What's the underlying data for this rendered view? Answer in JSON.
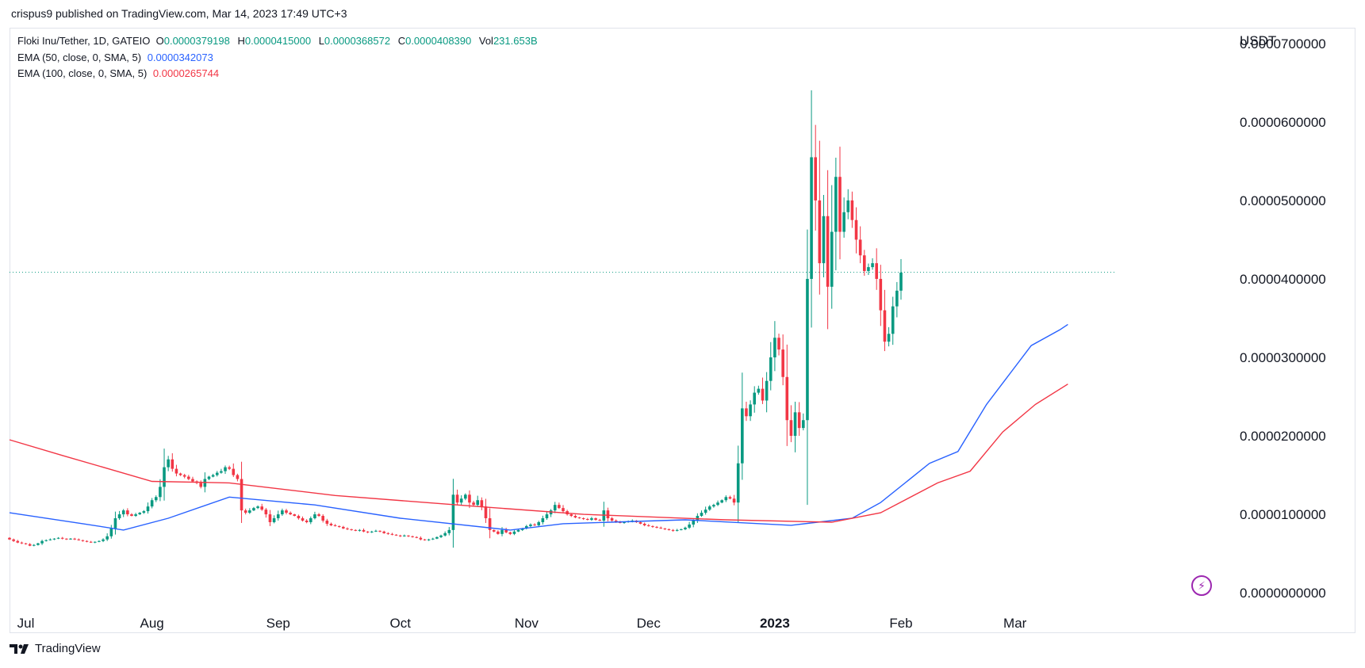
{
  "publisher": "crispus9 published on TradingView.com, Mar 14, 2023 17:49 UTC+3",
  "legend": {
    "symbol": "Floki Inu/Tether, 1D, GATEIO",
    "o_label": "O",
    "o_value": "0.0000379198",
    "h_label": "H",
    "h_value": "0.0000415000",
    "l_label": "L",
    "l_value": "0.0000368572",
    "c_label": "C",
    "c_value": "0.0000408390",
    "vol_label": "Vol",
    "vol_value": "231.653B",
    "ema50_label": "EMA (50, close, 0, SMA, 5)",
    "ema50_value": "0.0000342073",
    "ema100_label": "EMA (100, close, 0, SMA, 5)",
    "ema100_value": "0.0000265744"
  },
  "currency": "USDT",
  "brand": "TradingView",
  "colors": {
    "up": "#089981",
    "down": "#f23645",
    "ema50": "#2962ff",
    "ema100": "#f23645",
    "grid_text": "#131722",
    "last_price_line": "#089981"
  },
  "icons": [
    "tradingview-logo-icon",
    "lightning-icon"
  ],
  "chart_data": {
    "type": "candlestick",
    "title": "Floki Inu/Tether, 1D, GATEIO",
    "ylabel": "USDT",
    "ylim": [
      -1e-06,
      7.15e-05
    ],
    "y_ticks": [
      "0.0000700000",
      "0.0000600000",
      "0.0000500000",
      "0.0000400000",
      "0.0000300000",
      "0.0000200000",
      "0.0000100000",
      "0.0000000000"
    ],
    "y_tick_values": [
      7e-05,
      6e-05,
      5e-05,
      4e-05,
      3e-05,
      2e-05,
      1e-05,
      0
    ],
    "x_ticks": [
      "Jul",
      "Aug",
      "Sep",
      "Oct",
      "Nov",
      "Dec",
      "2023",
      "Feb",
      "Mar"
    ],
    "x_tick_dates": [
      "2022-07-01",
      "2022-08-01",
      "2022-09-01",
      "2022-10-01",
      "2022-11-01",
      "2022-12-01",
      "2023-01-01",
      "2023-02-01",
      "2023-03-01"
    ],
    "x_range": [
      "2022-06-27",
      "2023-03-26"
    ],
    "last_price": 4.0839e-05,
    "candles": {
      "start_date": "2022-06-27",
      "interval": "1D",
      "close": [
        6.8e-06,
        6.6e-06,
        6.4e-06,
        6.3e-06,
        6.2e-06,
        6e-06,
        6.1e-06,
        6.3e-06,
        6.6e-06,
        6.7e-06,
        6.8e-06,
        6.9e-06,
        7e-06,
        6.9e-06,
        6.8e-06,
        6.9e-06,
        6.8e-06,
        6.7e-06,
        6.6e-06,
        6.5e-06,
        6.4e-06,
        6.5e-06,
        6.6e-06,
        6.8e-06,
        7.2e-06,
        8.2e-06,
        9.5e-06,
        1e-05,
        1.05e-05,
        1e-05,
        9.8e-06,
        1e-05,
        1.02e-05,
        1.04e-05,
        1.1e-05,
        1.18e-05,
        1.22e-05,
        1.35e-05,
        1.6e-05,
        1.7e-05,
        1.58e-05,
        1.52e-05,
        1.5e-05,
        1.48e-05,
        1.45e-05,
        1.42e-05,
        1.4e-05,
        1.35e-05,
        1.45e-05,
        1.48e-05,
        1.5e-05,
        1.53e-05,
        1.55e-05,
        1.6e-05,
        1.58e-05,
        1.5e-05,
        1.45e-05,
        1.05e-05,
        1.02e-05,
        1.05e-05,
        1.08e-05,
        1.1e-05,
        1.06e-05,
        1e-05,
        9e-06,
        9.5e-06,
        1e-05,
        1.05e-05,
        1.02e-05,
        1e-05,
        9.8e-06,
        9.5e-06,
        9.2e-06,
        9e-06,
        9.5e-06,
        1e-05,
        9.8e-06,
        9.2e-06,
        8.8e-06,
        8.6e-06,
        8.5e-06,
        8.4e-06,
        8.2e-06,
        8.1e-06,
        8e-06,
        7.9e-06,
        8e-06,
        7.8e-06,
        7.7e-06,
        7.8e-06,
        7.9e-06,
        7.8e-06,
        7.6e-06,
        7.5e-06,
        7.4e-06,
        7.3e-06,
        7.2e-06,
        7.3e-06,
        7.2e-06,
        7.1e-06,
        7e-06,
        6.8e-06,
        6.7e-06,
        6.8e-06,
        6.9e-06,
        7.1e-06,
        7.3e-06,
        7.6e-06,
        8e-06,
        1.25e-05,
        1.15e-05,
        1.2e-05,
        1.25e-05,
        1.15e-05,
        1.12e-05,
        1.18e-05,
        1.1e-05,
        9.5e-06,
        8e-06,
        7.8e-06,
        7.5e-06,
        8e-06,
        7.7e-06,
        7.5e-06,
        7.8e-06,
        8e-06,
        8.2e-06,
        8.5e-06,
        8.7e-06,
        8.6e-06,
        9e-06,
        9.5e-06,
        1e-05,
        1.05e-05,
        1.12e-05,
        1.08e-05,
        1.04e-05,
        1e-05,
        9.8e-06,
        9.6e-06,
        9.5e-06,
        9.4e-06,
        9.3e-06,
        9.5e-06,
        9.3e-06,
        9.2e-06,
        1.05e-05,
        9.5e-06,
        9.2e-06,
        9e-06,
        8.9e-06,
        9e-06,
        9.1e-06,
        9.2e-06,
        9e-06,
        8.8e-06,
        8.6e-06,
        8.5e-06,
        8.4e-06,
        8.3e-06,
        8.2e-06,
        8.1e-06,
        8e-06,
        7.9e-06,
        8e-06,
        8.1e-06,
        8.3e-06,
        8.7e-06,
        9.2e-06,
        9.8e-06,
        1.02e-05,
        1.06e-05,
        1.1e-05,
        1.12e-05,
        1.15e-05,
        1.18e-05,
        1.22e-05,
        1.2e-05,
        1.15e-05,
        1.65e-05,
        2.35e-05,
        2.25e-05,
        2.4e-05,
        2.55e-05,
        2.6e-05,
        2.45e-05,
        2.7e-05,
        3e-05,
        3.25e-05,
        3.1e-05,
        2.75e-05,
        2.2e-05,
        2e-05,
        2.3e-05,
        2.1e-05,
        2.2e-05,
        4e-05,
        5.55e-05,
        5e-05,
        4.2e-05,
        4.8e-05,
        3.9e-05,
        4.6e-05,
        5.3e-05,
        4.6e-05,
        4.85e-05,
        5e-05,
        4.75e-05,
        4.5e-05,
        4.3e-05,
        4.1e-05,
        4.15e-05,
        4.2e-05,
        4e-05,
        3.6e-05,
        3.2e-05,
        3.3e-05,
        3.65e-05,
        3.85e-05,
        4.08e-05
      ],
      "series_note": ""
    },
    "series": [
      {
        "name": "EMA (50, close, 0, SMA, 5)",
        "color": "#2962ff",
        "points": [
          [
            "2022-06-27",
            1.02e-05
          ],
          [
            "2022-07-15",
            8.8e-06
          ],
          [
            "2022-07-25",
            8e-06
          ],
          [
            "2022-08-05",
            9.5e-06
          ],
          [
            "2022-08-20",
            1.22e-05
          ],
          [
            "2022-09-10",
            1.12e-05
          ],
          [
            "2022-10-01",
            9.5e-06
          ],
          [
            "2022-10-28",
            8e-06
          ],
          [
            "2022-11-10",
            8.8e-06
          ],
          [
            "2022-12-10",
            9.3e-06
          ],
          [
            "2023-01-05",
            8.6e-06
          ],
          [
            "2023-01-20",
            9.5e-06
          ],
          [
            "2023-01-27",
            1.15e-05
          ],
          [
            "2023-02-08",
            1.65e-05
          ],
          [
            "2023-02-15",
            1.8e-05
          ],
          [
            "2023-02-22",
            2.4e-05
          ],
          [
            "2023-03-05",
            3.15e-05
          ],
          [
            "2023-03-12",
            3.35e-05
          ],
          [
            "2023-03-14",
            3.42e-05
          ]
        ]
      },
      {
        "name": "EMA (100, close, 0, SMA, 5)",
        "color": "#f23645",
        "points": [
          [
            "2022-06-27",
            1.95e-05
          ],
          [
            "2022-07-10",
            1.75e-05
          ],
          [
            "2022-08-01",
            1.42e-05
          ],
          [
            "2022-08-20",
            1.4e-05
          ],
          [
            "2022-09-15",
            1.24e-05
          ],
          [
            "2022-10-20",
            1.1e-05
          ],
          [
            "2022-11-15",
            1e-05
          ],
          [
            "2022-12-20",
            9.3e-06
          ],
          [
            "2023-01-15",
            9e-06
          ],
          [
            "2023-01-27",
            1.02e-05
          ],
          [
            "2023-02-10",
            1.4e-05
          ],
          [
            "2023-02-18",
            1.55e-05
          ],
          [
            "2023-02-26",
            2.05e-05
          ],
          [
            "2023-03-06",
            2.4e-05
          ],
          [
            "2023-03-14",
            2.66e-05
          ]
        ]
      }
    ]
  }
}
